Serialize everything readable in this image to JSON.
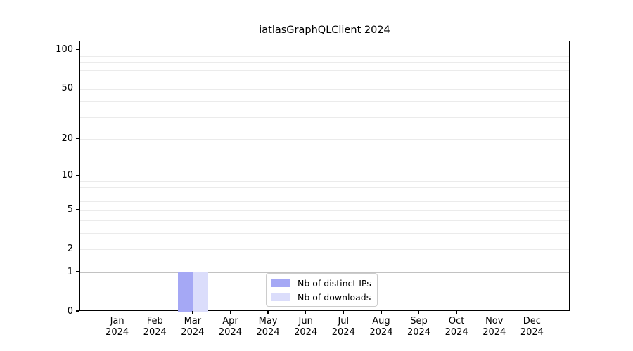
{
  "chart_data": {
    "type": "bar",
    "title": "iatlasGraphQLClient 2024",
    "categories": [
      "Jan 2024",
      "Feb 2024",
      "Mar 2024",
      "Apr 2024",
      "May 2024",
      "Jun 2024",
      "Jul 2024",
      "Aug 2024",
      "Sep 2024",
      "Oct 2024",
      "Nov 2024",
      "Dec 2024"
    ],
    "series": [
      {
        "name": "Nb of distinct IPs",
        "color": "#a5a8f5",
        "values": [
          0,
          0,
          1,
          0,
          0,
          0,
          0,
          0,
          0,
          0,
          0,
          0
        ]
      },
      {
        "name": "Nb of downloads",
        "color": "#dbddfb",
        "values": [
          0,
          0,
          1,
          0,
          0,
          0,
          0,
          0,
          0,
          0,
          0,
          0
        ]
      }
    ],
    "yscale": "log1p",
    "ylim": [
      0,
      117
    ],
    "y_ticks": [
      0,
      1,
      2,
      5,
      10,
      20,
      50,
      100
    ],
    "y_gridlines_major": [
      1,
      10,
      100
    ],
    "y_gridlines_minor": [
      2,
      3,
      4,
      5,
      6,
      7,
      8,
      9,
      20,
      30,
      40,
      50,
      60,
      70,
      80,
      90
    ],
    "grid_on": true,
    "legend_position": "lower center",
    "colors": {
      "axis": "#000000",
      "grid_major": "#c2c2c2",
      "grid_minor": "#ebebeb",
      "legend_border": "#cccccc",
      "background": "#ffffff"
    }
  }
}
